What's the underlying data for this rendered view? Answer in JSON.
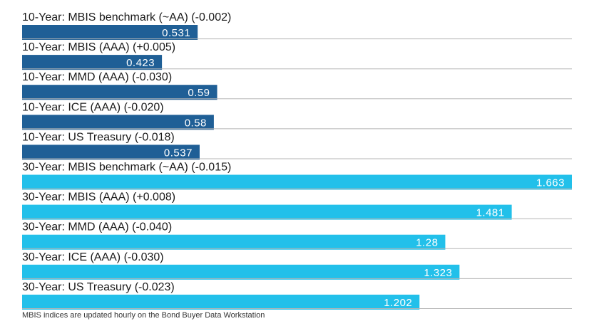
{
  "chart_data": {
    "type": "bar",
    "orientation": "horizontal",
    "categories": [
      "10-Year: MBIS benchmark (~AA) (-0.002)",
      "10-Year: MBIS (AAA) (+0.005)",
      "10-Year: MMD (AAA) (-0.030)",
      "10-Year: ICE (AAA) (-0.020)",
      "10-Year: US Treasury (-0.018)",
      "30-Year: MBIS benchmark (~AA) (-0.015)",
      "30-Year: MBIS (AAA) (+0.008)",
      "30-Year: MMD (AAA) (-0.040)",
      "30-Year: ICE (AAA) (-0.030)",
      "30-Year: US Treasury (-0.023)"
    ],
    "values": [
      0.531,
      0.423,
      0.59,
      0.58,
      0.537,
      1.663,
      1.481,
      1.28,
      1.323,
      1.202
    ],
    "value_labels": [
      "0.531",
      "0.423",
      "0.59",
      "0.58",
      "0.537",
      "1.663",
      "1.481",
      "1.28",
      "1.323",
      "1.202"
    ],
    "colors": [
      "#1f5f96",
      "#1f5f96",
      "#1f5f96",
      "#1f5f96",
      "#1f5f96",
      "#22c0ea",
      "#22c0ea",
      "#22c0ea",
      "#22c0ea",
      "#22c0ea"
    ],
    "xlim": [
      0,
      1.663
    ],
    "grid": false,
    "legend": "none"
  },
  "footnote": "MBIS indices are updated hourly on the Bond Buyer Data Workstation"
}
